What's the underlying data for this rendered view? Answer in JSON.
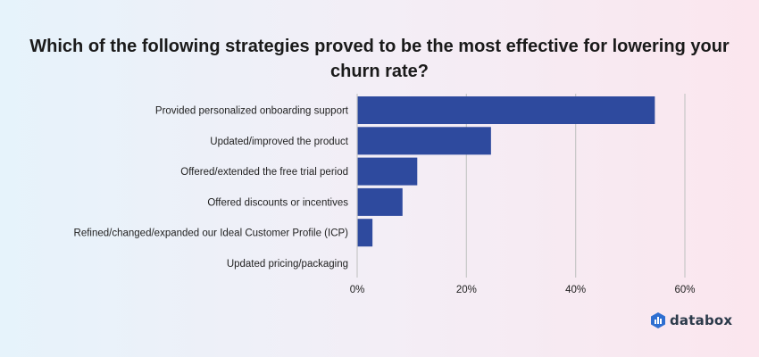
{
  "chart_data": {
    "type": "bar",
    "orientation": "horizontal",
    "title": "Which of the following strategies proved to be the most effective for lowering your churn rate?",
    "categories": [
      "Provided personalized onboarding support",
      "Updated/improved the product",
      "Offered/extended the free trial period",
      "Offered discounts or incentives",
      "Refined/changed/expanded our Ideal Customer Profile (ICP)",
      "Updated pricing/packaging"
    ],
    "values": [
      54.5,
      24.5,
      11,
      8.3,
      2.8,
      0
    ],
    "xlim": [
      0,
      60
    ],
    "xticks": [
      0,
      20,
      40,
      60
    ],
    "tick_labels": [
      "0%",
      "20%",
      "40%",
      "60%"
    ],
    "grid": "vertical",
    "bar_color": "#2e4a9e",
    "grid_color": "#c7c7c7"
  },
  "brand": {
    "name": "databox",
    "color": "#2f6fd1"
  }
}
